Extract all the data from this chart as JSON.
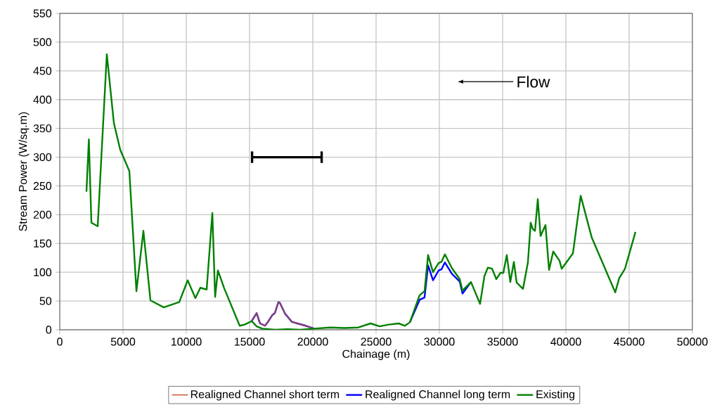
{
  "chart_data": {
    "type": "line",
    "xlabel": "Chainage (m)",
    "ylabel": "Stream Power (W/sq.m)",
    "xlim": [
      0,
      50000
    ],
    "ylim": [
      0,
      550
    ],
    "xticks": [
      0,
      5000,
      10000,
      15000,
      20000,
      25000,
      30000,
      35000,
      40000,
      45000,
      50000
    ],
    "yticks": [
      0,
      50,
      100,
      150,
      200,
      250,
      300,
      350,
      400,
      450,
      500,
      550
    ],
    "grid": true,
    "legend": "bottom",
    "line_style": "solid",
    "marker": "none",
    "annotations": [
      "Flow"
    ],
    "series": [
      {
        "name": "Realigned Channel short term",
        "color": "#c0501f",
        "x": [
          15170,
          15560,
          15830,
          16220,
          16500,
          16780,
          17000,
          17280,
          17390,
          17830,
          18000,
          18330,
          18780,
          19440,
          20110
        ],
        "values": [
          15,
          29,
          11,
          7,
          15,
          25,
          29,
          48,
          47,
          27,
          23,
          14,
          11,
          7,
          2
        ]
      },
      {
        "name": "Realigned Channel long term",
        "color": "#0000ff",
        "x": [
          15170,
          15560,
          15830,
          16220,
          16500,
          16780,
          17000,
          17280,
          17390,
          17830,
          18000,
          18330,
          18780,
          19440,
          20110,
          24560,
          27670,
          28440,
          28830,
          29110,
          29500,
          29940,
          30170,
          30440,
          31000,
          31610,
          31830,
          32500
        ],
        "values": [
          15,
          29,
          11,
          7,
          15,
          25,
          29,
          48,
          47,
          27,
          23,
          14,
          11,
          7,
          2,
          null,
          13,
          52,
          56,
          112,
          86,
          103,
          105,
          117,
          97,
          84,
          63,
          83
        ]
      },
      {
        "name": "Existing",
        "color": "#008000",
        "x": [
          2110,
          2300,
          2500,
          3000,
          3720,
          4280,
          4780,
          5500,
          6060,
          6610,
          7170,
          8220,
          9440,
          10110,
          10720,
          11110,
          11610,
          12060,
          12280,
          12500,
          13000,
          14220,
          14610,
          15170,
          15560,
          16000,
          17000,
          18000,
          19000,
          20110,
          21390,
          22500,
          23610,
          24560,
          25280,
          26000,
          26780,
          27280,
          27670,
          28440,
          28830,
          29110,
          29500,
          29940,
          30170,
          30440,
          31000,
          31610,
          31830,
          32500,
          33220,
          33560,
          33830,
          34170,
          34500,
          34830,
          35060,
          35330,
          35610,
          35890,
          36110,
          36610,
          37000,
          37220,
          37390,
          37560,
          37780,
          38000,
          38390,
          38670,
          39000,
          39500,
          39670,
          40560,
          41170,
          42050,
          43900,
          44220,
          44670,
          45500
        ],
        "values": [
          240,
          331,
          186,
          180,
          479,
          359,
          313,
          276,
          67,
          172,
          51,
          39,
          48,
          86,
          55,
          73,
          70,
          203,
          57,
          103,
          72,
          7,
          9,
          15,
          6,
          2,
          0,
          1,
          0,
          2,
          4,
          3,
          4,
          11,
          6,
          9,
          11,
          7,
          13,
          60,
          67,
          130,
          100,
          116,
          118,
          131,
          107,
          88,
          68,
          83,
          45,
          93,
          108,
          106,
          88,
          99,
          99,
          130,
          83,
          118,
          82,
          71,
          117,
          186,
          175,
          172,
          227,
          163,
          182,
          104,
          136,
          120,
          106,
          133,
          233,
          160,
          65,
          90,
          106,
          170
        ]
      },
      {
        "color": "#000000",
        "x": [
          15200,
          20700
        ],
        "values": [
          300,
          300
        ],
        "errors": [
          10,
          10
        ]
      }
    ]
  }
}
